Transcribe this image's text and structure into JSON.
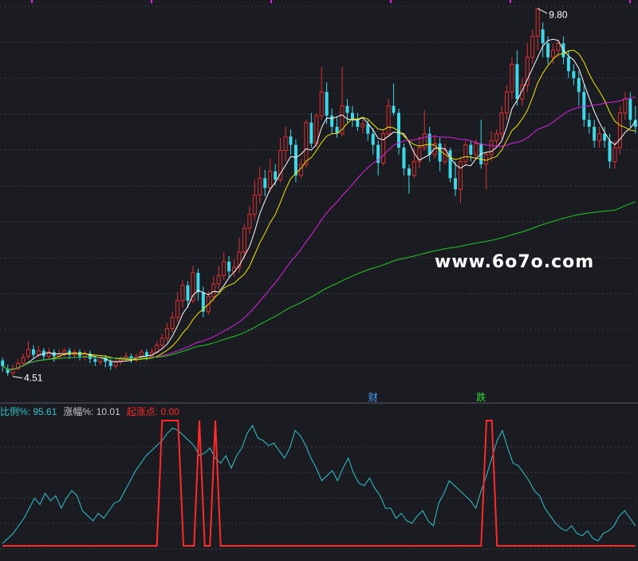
{
  "chart_data": [
    {
      "type": "candlestick",
      "title": "",
      "ylim": [
        4.3,
        9.9
      ],
      "price_high_label": "9.80",
      "price_low_label": "4.51",
      "markers": [
        {
          "text": "财",
          "candle_index": 72,
          "color": "#4aa3ff"
        },
        {
          "text": "跌",
          "candle_index": 93,
          "color": "#33dd33"
        }
      ],
      "candles": [
        [
          4.74,
          4.66,
          4.78,
          4.58
        ],
        [
          4.62,
          4.56,
          4.68,
          4.52
        ],
        [
          4.56,
          4.62,
          4.68,
          4.51
        ],
        [
          4.62,
          4.7,
          4.76,
          4.6
        ],
        [
          4.7,
          4.78,
          4.84,
          4.66
        ],
        [
          4.8,
          4.9,
          5.02,
          4.76
        ],
        [
          4.9,
          4.82,
          4.96,
          4.76
        ],
        [
          4.82,
          4.88,
          4.95,
          4.78
        ],
        [
          4.88,
          4.8,
          4.92,
          4.74
        ],
        [
          4.8,
          4.86,
          4.92,
          4.76
        ],
        [
          4.86,
          4.8,
          4.9,
          4.72
        ],
        [
          4.8,
          4.84,
          4.9,
          4.76
        ],
        [
          4.84,
          4.88,
          4.92,
          4.8
        ],
        [
          4.88,
          4.82,
          4.92,
          4.76
        ],
        [
          4.82,
          4.86,
          4.9,
          4.78
        ],
        [
          4.86,
          4.8,
          4.9,
          4.74
        ],
        [
          4.8,
          4.84,
          4.88,
          4.74
        ],
        [
          4.84,
          4.76,
          4.88,
          4.7
        ],
        [
          4.76,
          4.72,
          4.8,
          4.66
        ],
        [
          4.72,
          4.78,
          4.82,
          4.68
        ],
        [
          4.78,
          4.72,
          4.82,
          4.64
        ],
        [
          4.72,
          4.66,
          4.76,
          4.6
        ],
        [
          4.66,
          4.72,
          4.76,
          4.62
        ],
        [
          4.72,
          4.76,
          4.8,
          4.68
        ],
        [
          4.76,
          4.8,
          4.86,
          4.72
        ],
        [
          4.8,
          4.76,
          4.84,
          4.7
        ],
        [
          4.76,
          4.8,
          4.84,
          4.72
        ],
        [
          4.8,
          4.86,
          4.9,
          4.76
        ],
        [
          4.86,
          4.8,
          4.9,
          4.74
        ],
        [
          4.8,
          4.86,
          4.92,
          4.78
        ],
        [
          4.86,
          4.96,
          5.02,
          4.84
        ],
        [
          4.96,
          5.06,
          5.12,
          4.9
        ],
        [
          5.06,
          5.2,
          5.28,
          5.0
        ],
        [
          5.2,
          5.36,
          5.44,
          5.14
        ],
        [
          5.36,
          5.6,
          5.72,
          5.3
        ],
        [
          5.6,
          5.82,
          5.9,
          5.5
        ],
        [
          5.82,
          5.6,
          5.88,
          5.5
        ],
        [
          5.6,
          6.0,
          6.1,
          5.56
        ],
        [
          6.0,
          5.72,
          6.06,
          5.6
        ],
        [
          5.72,
          5.44,
          5.8,
          5.36
        ],
        [
          5.44,
          5.66,
          5.74,
          5.4
        ],
        [
          5.66,
          5.84,
          5.96,
          5.58
        ],
        [
          5.84,
          5.96,
          6.1,
          5.76
        ],
        [
          5.96,
          6.16,
          6.3,
          5.9
        ],
        [
          6.16,
          6.02,
          6.24,
          5.94
        ],
        [
          6.02,
          6.08,
          6.2,
          5.94
        ],
        [
          6.08,
          6.3,
          6.5,
          6.0
        ],
        [
          6.3,
          6.64,
          6.7,
          6.2
        ],
        [
          6.64,
          6.84,
          6.96,
          6.56
        ],
        [
          6.84,
          7.12,
          7.34,
          6.76
        ],
        [
          7.12,
          7.36,
          7.52,
          7.0
        ],
        [
          7.36,
          7.22,
          7.48,
          7.1
        ],
        [
          7.22,
          7.46,
          7.64,
          7.16
        ],
        [
          7.46,
          7.34,
          7.56,
          7.26
        ],
        [
          7.34,
          7.76,
          7.94,
          7.3
        ],
        [
          7.76,
          7.96,
          8.1,
          7.6
        ],
        [
          7.96,
          7.84,
          8.06,
          7.7
        ],
        [
          7.84,
          7.4,
          7.92,
          7.3
        ],
        [
          7.4,
          7.56,
          7.64,
          7.36
        ],
        [
          7.56,
          8.16,
          8.2,
          7.5
        ],
        [
          8.16,
          7.86,
          8.3,
          7.8
        ],
        [
          7.86,
          8.26,
          8.3,
          7.8
        ],
        [
          8.26,
          8.6,
          8.96,
          8.2
        ],
        [
          8.6,
          8.26,
          8.74,
          8.14
        ],
        [
          8.26,
          8.1,
          8.36,
          8.0
        ],
        [
          8.1,
          8.0,
          8.24,
          7.94
        ],
        [
          8.0,
          8.4,
          8.96,
          7.96
        ],
        [
          8.4,
          8.3,
          8.5,
          8.16
        ],
        [
          8.3,
          8.2,
          8.4,
          8.1
        ],
        [
          8.2,
          8.1,
          8.3,
          8.04
        ],
        [
          8.1,
          8.14,
          8.2,
          8.0
        ],
        [
          8.14,
          8.0,
          8.2,
          7.9
        ],
        [
          8.0,
          7.84,
          8.08,
          7.7
        ],
        [
          7.84,
          7.58,
          7.9,
          7.4
        ],
        [
          7.58,
          8.0,
          8.06,
          7.54
        ],
        [
          8.0,
          8.4,
          8.5,
          7.96
        ],
        [
          8.4,
          8.3,
          8.72,
          8.26
        ],
        [
          8.3,
          7.8,
          8.36,
          7.7
        ],
        [
          7.8,
          7.5,
          7.86,
          7.4
        ],
        [
          7.5,
          7.4,
          7.56,
          7.14
        ],
        [
          7.4,
          7.6,
          7.8,
          7.36
        ],
        [
          7.6,
          7.8,
          7.96,
          7.5
        ],
        [
          7.8,
          8.0,
          8.34,
          7.76
        ],
        [
          8.0,
          7.7,
          8.1,
          7.6
        ],
        [
          7.7,
          7.86,
          7.98,
          7.64
        ],
        [
          7.86,
          7.6,
          7.94,
          7.46
        ],
        [
          7.6,
          7.76,
          7.86,
          7.56
        ],
        [
          7.76,
          7.36,
          7.8,
          7.3
        ],
        [
          7.36,
          7.2,
          7.6,
          7.1
        ],
        [
          7.2,
          7.6,
          7.66,
          7.0
        ],
        [
          7.6,
          7.84,
          7.9,
          7.54
        ],
        [
          7.84,
          7.7,
          7.9,
          7.6
        ],
        [
          7.7,
          7.86,
          7.92,
          7.66
        ],
        [
          7.86,
          7.56,
          8.2,
          7.5
        ],
        [
          7.56,
          7.7,
          7.74,
          7.2
        ],
        [
          7.7,
          7.9,
          8.04,
          7.6
        ],
        [
          7.9,
          8.0,
          8.06,
          7.8
        ],
        [
          8.0,
          8.3,
          8.4,
          7.9
        ],
        [
          8.3,
          8.6,
          8.7,
          8.2
        ],
        [
          8.6,
          9.0,
          9.1,
          8.5
        ],
        [
          9.0,
          8.5,
          9.2,
          8.4
        ],
        [
          8.5,
          8.7,
          8.8,
          8.4
        ],
        [
          8.7,
          9.1,
          9.3,
          8.6
        ],
        [
          9.1,
          9.4,
          9.5,
          9.0
        ],
        [
          9.4,
          9.8,
          9.8,
          9.2
        ],
        [
          9.5,
          9.3,
          9.6,
          9.1
        ],
        [
          9.3,
          9.1,
          9.4,
          9.0
        ],
        [
          9.1,
          9.2,
          9.3,
          9.0
        ],
        [
          9.2,
          9.3,
          9.36,
          9.1
        ],
        [
          9.3,
          9.1,
          9.4,
          9.0
        ],
        [
          9.1,
          8.9,
          9.2,
          8.8
        ],
        [
          8.9,
          8.8,
          9.0,
          8.7
        ],
        [
          8.8,
          8.6,
          8.9,
          8.4
        ],
        [
          8.6,
          8.2,
          8.7,
          8.1
        ],
        [
          8.2,
          8.1,
          8.3,
          8.0
        ],
        [
          8.1,
          7.9,
          8.2,
          7.8
        ],
        [
          7.9,
          8.0,
          8.1,
          7.8
        ],
        [
          8.0,
          7.9,
          8.1,
          7.8
        ],
        [
          7.9,
          7.6,
          8.0,
          7.5
        ],
        [
          7.6,
          7.8,
          7.9,
          7.5
        ],
        [
          7.8,
          8.3,
          8.4,
          7.7
        ],
        [
          8.3,
          8.5,
          8.6,
          8.2
        ],
        [
          8.5,
          8.2,
          8.6,
          8.1
        ],
        [
          8.2,
          8.1,
          8.4,
          8.0
        ]
      ],
      "ma_lines": [
        {
          "color": "#ffffff"
        },
        {
          "color": "#f2e600"
        },
        {
          "color": "#e020e0"
        },
        {
          "color": "#22cc22"
        }
      ]
    },
    {
      "type": "line",
      "legend": [
        {
          "label": "比例%:",
          "value": "95.61",
          "color": "#33c3cc"
        },
        {
          "label": "涨幅%:",
          "value": "10.01",
          "color": "#c8c8c8"
        },
        {
          "label": "起涨点:",
          "value": "0.00",
          "color": "#ff2a2a"
        }
      ],
      "ylim": [
        0,
        100
      ],
      "series": [
        {
          "color": "#33c3cc",
          "values": [
            2,
            6,
            10,
            16,
            22,
            30,
            38,
            33,
            42,
            36,
            40,
            30,
            38,
            44,
            40,
            28,
            24,
            20,
            26,
            22,
            28,
            34,
            36,
            44,
            52,
            60,
            66,
            72,
            76,
            80,
            84,
            90,
            94,
            92,
            88,
            84,
            80,
            72,
            74,
            78,
            70,
            66,
            72,
            62,
            72,
            78,
            90,
            96,
            86,
            84,
            80,
            82,
            76,
            70,
            78,
            92,
            88,
            80,
            70,
            62,
            52,
            56,
            60,
            52,
            62,
            70,
            58,
            50,
            48,
            54,
            46,
            40,
            30,
            30,
            22,
            26,
            20,
            18,
            24,
            28,
            20,
            16,
            34,
            42,
            52,
            48,
            44,
            40,
            36,
            30,
            44,
            56,
            70,
            84,
            92,
            78,
            66,
            64,
            58,
            52,
            44,
            40,
            30,
            24,
            18,
            14,
            12,
            16,
            10,
            8,
            12,
            6,
            4,
            10,
            12,
            16,
            24,
            28,
            22,
            16
          ],
          "width": 1
        },
        {
          "color": "#ff2a2a",
          "values": [
            0,
            0,
            0,
            0,
            0,
            0,
            0,
            0,
            0,
            0,
            0,
            0,
            0,
            0,
            0,
            0,
            0,
            0,
            0,
            0,
            0,
            0,
            0,
            0,
            0,
            0,
            0,
            0,
            0,
            0,
            100,
            100,
            100,
            100,
            0,
            0,
            0,
            100,
            0,
            0,
            100,
            0,
            0,
            0,
            0,
            0,
            0,
            0,
            0,
            0,
            0,
            0,
            0,
            0,
            0,
            0,
            0,
            0,
            0,
            0,
            0,
            0,
            0,
            0,
            0,
            0,
            0,
            0,
            0,
            0,
            0,
            0,
            0,
            0,
            0,
            0,
            0,
            0,
            0,
            0,
            0,
            0,
            0,
            0,
            0,
            0,
            0,
            0,
            0,
            0,
            0,
            100,
            100,
            0,
            0,
            0,
            0,
            0,
            0,
            0,
            0,
            0,
            0,
            0,
            0,
            0,
            0,
            0,
            0,
            0,
            0,
            0,
            0,
            0,
            0,
            0,
            0,
            0,
            0,
            0
          ],
          "width": 2
        }
      ]
    }
  ],
  "watermark": "www.6o7o.com",
  "colors": {
    "up": "#e03030",
    "down": "#3fd8e8",
    "grid": "#3a3e48",
    "bg": "#1a1c22"
  }
}
